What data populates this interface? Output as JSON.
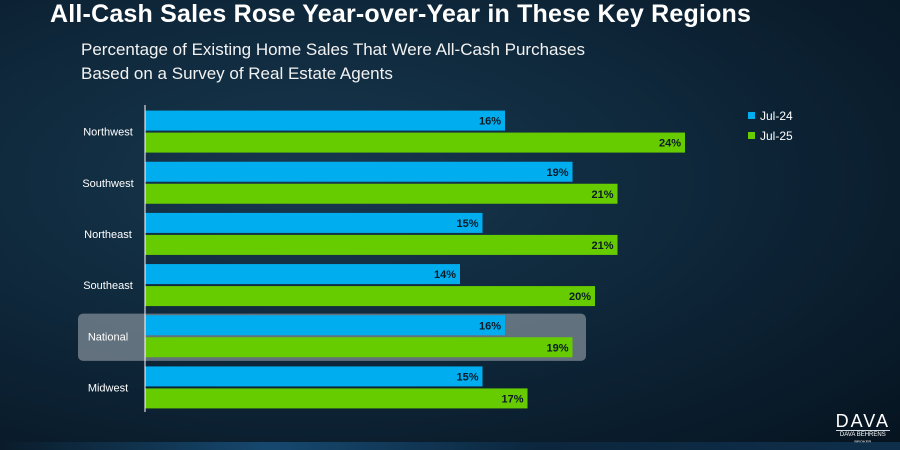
{
  "title": "All-Cash Sales Rose Year-over-Year in These Key Regions",
  "subtitle_line1": "Percentage of Existing Home Sales That Were All-Cash Purchases",
  "subtitle_line2": "Based on a Survey of Real Estate Agents",
  "logo": {
    "main": "DAVA",
    "sub": "DAVA BEHRENS",
    "sub2": "BROKER"
  },
  "colors": {
    "jul24": "#00aeef",
    "jul25": "#66cc00",
    "highlight": "#7f8b96",
    "axis": "#ffffff"
  },
  "chart_data": {
    "type": "bar",
    "orientation": "horizontal",
    "categories": [
      "Northwest",
      "Southwest",
      "Northeast",
      "Southeast",
      "National",
      "Midwest"
    ],
    "series": [
      {
        "name": "Jul-24",
        "values": [
          16,
          19,
          15,
          14,
          16,
          15
        ]
      },
      {
        "name": "Jul-25",
        "values": [
          24,
          21,
          21,
          20,
          19,
          17
        ]
      }
    ],
    "value_suffix": "%",
    "xlim": [
      0,
      30
    ],
    "highlighted_category": "National",
    "legend_position": "top-right",
    "grid": false
  }
}
